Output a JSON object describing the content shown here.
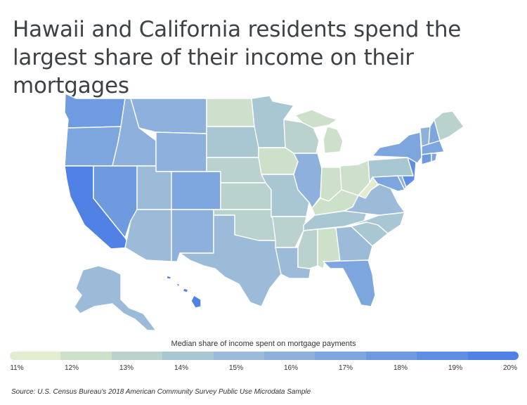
{
  "title": "Hawaii and California residents spend the largest share of their income on their mortgages",
  "legend": {
    "title": "Median share of income spent on mortgage payments",
    "colors": [
      "#e2edd0",
      "#cde0c9",
      "#bad2cd",
      "#a9c6d3",
      "#9bbbd8",
      "#8db1dc",
      "#7ea6de",
      "#6e9ae0",
      "#5f8ee2",
      "#4f82e4"
    ],
    "labels": [
      "11%",
      "12%",
      "13%",
      "14%",
      "15%",
      "16%",
      "17%",
      "18%",
      "19%",
      "20%"
    ]
  },
  "source": "Source: U.S. Census Bureau's 2018 American Community Survey Public Use Microdata Sample"
}
